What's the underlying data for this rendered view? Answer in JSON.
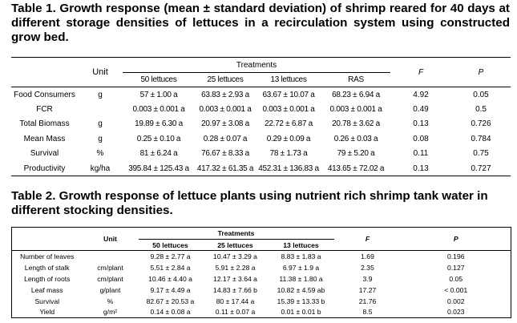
{
  "table1": {
    "caption": "Table 1. Growth response (mean ± standard deviation) of shrimp reared for 40 days at different storage densities of lettuces in a recirculation system using constructed grow bed.",
    "unit_header": "Unit",
    "treatments_header": "Treatments",
    "f_header": "F",
    "p_header": "P",
    "treatments": [
      "50 lettuces",
      "25 lettuces",
      "13 lettuces",
      "RAS"
    ],
    "rows": [
      {
        "label": "Food Consumers",
        "unit": "g",
        "values": [
          "57 ± 1.00 a",
          "63.83 ± 2.93 a",
          "63.67 ± 10.07 a",
          "68.23 ± 6.94 a"
        ],
        "f": "4.92",
        "p": "0.05"
      },
      {
        "label": "FCR",
        "unit": "",
        "values": [
          "0.003 ± 0.001 a",
          "0.003 ± 0.001 a",
          "0.003 ± 0.001 a",
          "0.003 ± 0.001 a"
        ],
        "f": "0.49",
        "p": "0.5"
      },
      {
        "label": "Total Biomass",
        "unit": "g",
        "values": [
          "19.89 ± 6.30 a",
          "20.97 ± 3.08 a",
          "22.72 ± 6.87 a",
          "20.78 ± 3.62 a"
        ],
        "f": "0.13",
        "p": "0.726"
      },
      {
        "label": "Mean Mass",
        "unit": "g",
        "values": [
          "0.25 ± 0.10 a",
          "0.28 ± 0.07 a",
          "0.29 ± 0.09 a",
          "0.26 ± 0.03 a"
        ],
        "f": "0.08",
        "p": "0.784"
      },
      {
        "label": "Survival",
        "unit": "%",
        "values": [
          "81 ± 6.24 a",
          "76.67 ± 8.33 a",
          "78 ± 1.73 a",
          "79 ± 5.20 a"
        ],
        "f": "0.11",
        "p": "0.75"
      },
      {
        "label": "Productivity",
        "unit": "kg/ha",
        "values": [
          "395.84 ± 125.43 a",
          "417.32 ± 61.35 a",
          "452.31 ± 136.83 a",
          "413.65 ± 72.02 a"
        ],
        "f": "0.13",
        "p": "0.727"
      }
    ]
  },
  "table2": {
    "caption": "Table 2. Growth response of lettuce plants using nutrient rich shrimp tank water in different stocking densities.",
    "unit_header": "Unit",
    "treatments_header": "Treatments",
    "f_header": "F",
    "p_header": "P",
    "treatments": [
      "50 lettuces",
      "25 lettuces",
      "13 lettuces"
    ],
    "rows": [
      {
        "label": "Number of leaves",
        "unit": "",
        "values": [
          "9.28 ± 2.77 a",
          "10.47 ± 3.29 a",
          "8.83 ± 1.83 a"
        ],
        "f": "1.69",
        "p": "0.196"
      },
      {
        "label": "Length of stalk",
        "unit": "cm/plant",
        "values": [
          "5.51 ± 2.84 a",
          "5.91 ± 2.28 a",
          "6.97 ± 1.9 a"
        ],
        "f": "2.35",
        "p": "0.127"
      },
      {
        "label": "Length of roots",
        "unit": "cm/plant",
        "values": [
          "10.46 ± 4.40 a",
          "12.17 ± 3.64 a",
          "11.38 ± 1.80 a"
        ],
        "f": "3.9",
        "p": "0.05"
      },
      {
        "label": "Leaf mass",
        "unit": "g/plant",
        "values": [
          "9.17 ± 4.49 a",
          "14.83 ± 7.66 b",
          "10.82 ± 4.59 ab"
        ],
        "f": "17.27",
        "p": "< 0.001"
      },
      {
        "label": "Survival",
        "unit": "%",
        "values": [
          "82.67 ± 20.53 a",
          "80 ± 17.44 a",
          "15.39 ± 13.33 b"
        ],
        "f": "21.76",
        "p": "0.002"
      },
      {
        "label": "Yield",
        "unit": "g/m²",
        "values": [
          "0.14 ± 0.08 a",
          "0.11 ± 0.07 a",
          "0.01 ± 0.01 b"
        ],
        "f": "8.5",
        "p": "0.023"
      }
    ]
  }
}
